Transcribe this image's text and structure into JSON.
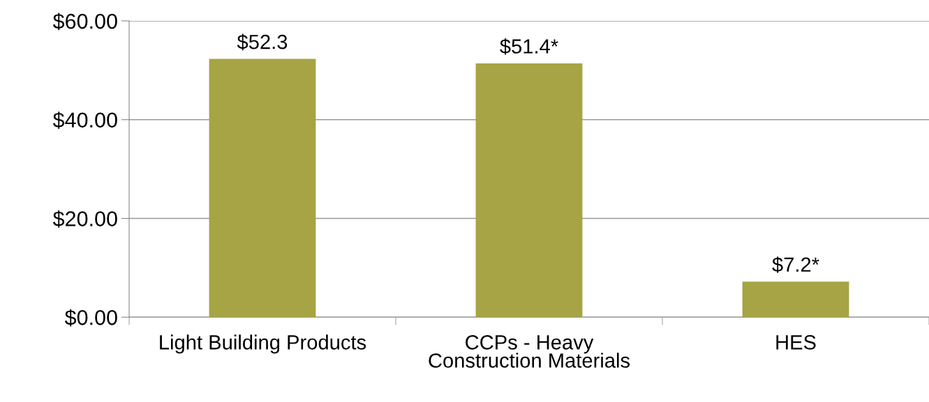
{
  "chart_data": {
    "type": "bar",
    "categories": [
      "Light Building Products",
      "CCPs - Heavy\nConstruction Materials",
      "HES"
    ],
    "values": [
      52.3,
      51.4,
      7.2
    ],
    "value_labels": [
      "$52.3",
      "$51.4*",
      "$7.2*"
    ],
    "color": "#a6a444",
    "ylim": [
      0,
      60
    ],
    "yticks": [
      {
        "value": 0,
        "label": "$0.00"
      },
      {
        "value": 20,
        "label": "$20.00"
      },
      {
        "value": 40,
        "label": "$40.00"
      },
      {
        "value": 60,
        "label": "$60.00"
      }
    ],
    "grid": "y"
  }
}
